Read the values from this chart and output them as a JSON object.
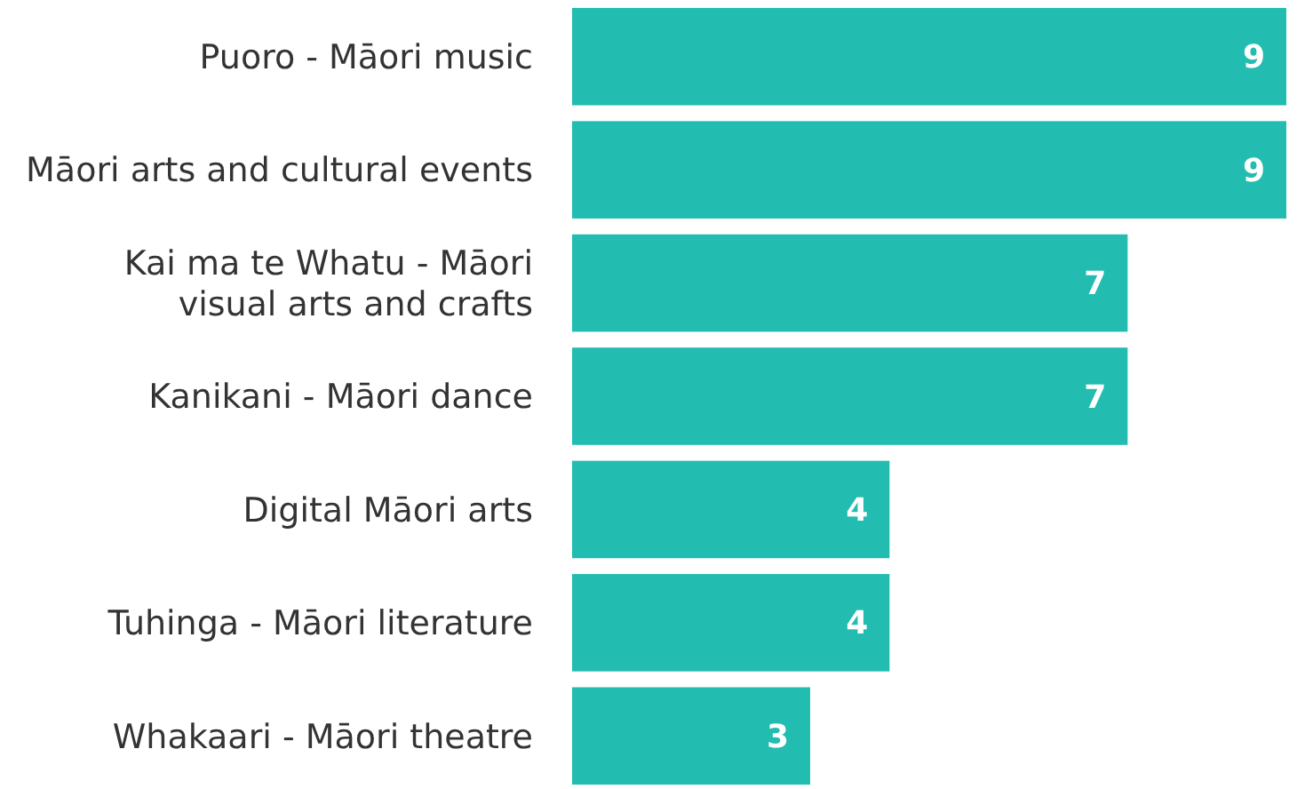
{
  "chart_data": {
    "type": "bar",
    "orientation": "horizontal",
    "categories": [
      "Puoro - Māori music",
      "Māori arts and cultural events",
      "Kai ma te Whatu - Māori visual arts and crafts",
      "Kanikani - Māori dance",
      "Digital Māori arts",
      "Tuhinga - Māori literature",
      "Whakaari - Māori theatre"
    ],
    "values": [
      9,
      9,
      7,
      7,
      4,
      4,
      3
    ],
    "color": "#22bcb0",
    "data_labels": true
  }
}
